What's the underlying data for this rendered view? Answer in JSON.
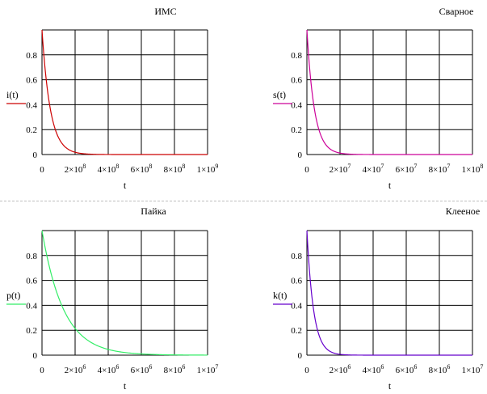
{
  "chart_data": [
    {
      "type": "line",
      "title": "ИМС",
      "ylabel": "i(t)",
      "xlabel": "t",
      "color": "#cc0000",
      "xlim": [
        0,
        1000000000
      ],
      "ylim": [
        0,
        1
      ],
      "tau": 50000000,
      "xticks": [
        {
          "value": 0,
          "base": "0",
          "exp": ""
        },
        {
          "value": 200000000,
          "base": "2×10",
          "exp": "8"
        },
        {
          "value": 400000000,
          "base": "4×10",
          "exp": "8"
        },
        {
          "value": 600000000,
          "base": "6×10",
          "exp": "8"
        },
        {
          "value": 800000000,
          "base": "8×10",
          "exp": "8"
        },
        {
          "value": 1000000000,
          "base": "1×10",
          "exp": "9"
        }
      ],
      "yticks": [
        "0",
        "0.2",
        "0.4",
        "0.6",
        "0.8"
      ],
      "grid": true
    },
    {
      "type": "line",
      "title": "Сварное",
      "ylabel": "s(t)",
      "xlabel": "t",
      "color": "#cc0099",
      "xlim": [
        0,
        100000000
      ],
      "ylim": [
        0,
        1
      ],
      "tau": 4500000,
      "xticks": [
        {
          "value": 0,
          "base": "0",
          "exp": ""
        },
        {
          "value": 20000000,
          "base": "2×10",
          "exp": "7"
        },
        {
          "value": 40000000,
          "base": "4×10",
          "exp": "7"
        },
        {
          "value": 60000000,
          "base": "6×10",
          "exp": "7"
        },
        {
          "value": 80000000,
          "base": "8×10",
          "exp": "7"
        },
        {
          "value": 100000000,
          "base": "1×10",
          "exp": "8"
        }
      ],
      "yticks": [
        "0",
        "0.2",
        "0.4",
        "0.6",
        "0.8"
      ],
      "grid": true
    },
    {
      "type": "line",
      "title": "Пайка",
      "ylabel": "p(t)",
      "xlabel": "t",
      "color": "#33ee66",
      "xlim": [
        0,
        10000000
      ],
      "ylim": [
        0,
        1
      ],
      "tau": 1300000,
      "xticks": [
        {
          "value": 0,
          "base": "0",
          "exp": ""
        },
        {
          "value": 2000000,
          "base": "2×10",
          "exp": "6"
        },
        {
          "value": 4000000,
          "base": "4×10",
          "exp": "6"
        },
        {
          "value": 6000000,
          "base": "6×10",
          "exp": "6"
        },
        {
          "value": 8000000,
          "base": "8×10",
          "exp": "6"
        },
        {
          "value": 10000000,
          "base": "1×10",
          "exp": "7"
        }
      ],
      "yticks": [
        "0",
        "0.2",
        "0.4",
        "0.6",
        "0.8"
      ],
      "grid": true
    },
    {
      "type": "line",
      "title": "Клееное",
      "ylabel": "k(t)",
      "xlabel": "t",
      "color": "#6600cc",
      "xlim": [
        0,
        10000000
      ],
      "ylim": [
        0,
        1
      ],
      "tau": 400000,
      "xticks": [
        {
          "value": 0,
          "base": "0",
          "exp": ""
        },
        {
          "value": 2000000,
          "base": "2×10",
          "exp": "6"
        },
        {
          "value": 4000000,
          "base": "4×10",
          "exp": "6"
        },
        {
          "value": 6000000,
          "base": "6×10",
          "exp": "6"
        },
        {
          "value": 8000000,
          "base": "8×10",
          "exp": "6"
        },
        {
          "value": 10000000,
          "base": "1×10",
          "exp": "7"
        }
      ],
      "yticks": [
        "0",
        "0.2",
        "0.4",
        "0.6",
        "0.8"
      ],
      "grid": true
    }
  ]
}
